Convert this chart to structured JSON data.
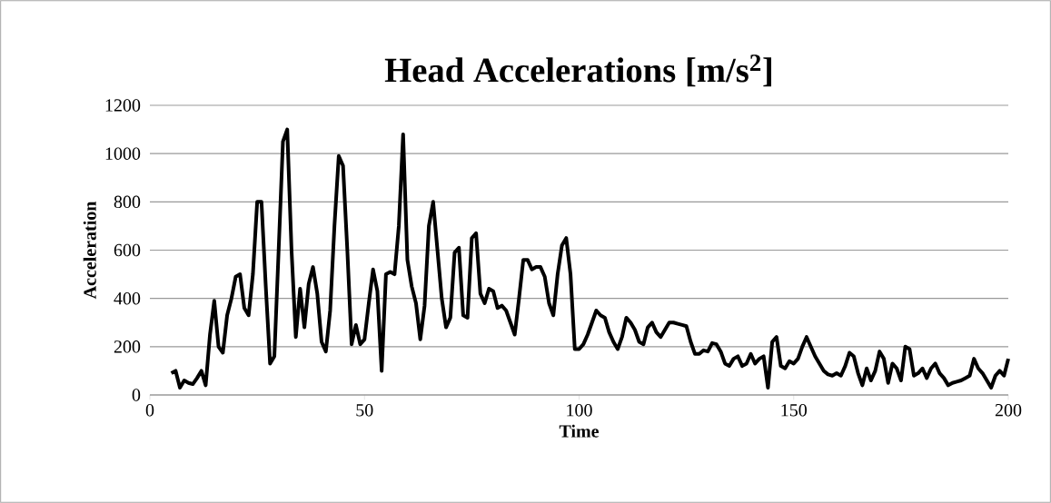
{
  "chart_data": {
    "type": "line",
    "title": "Head Accelerations [m/s$^{2}$]",
    "xlabel": "Time",
    "ylabel": "Acceleration",
    "x": [
      5,
      6,
      7,
      8,
      9,
      10,
      11,
      12,
      13,
      14,
      15,
      16,
      17,
      18,
      19,
      20,
      21,
      22,
      23,
      24,
      25,
      26,
      27,
      28,
      29,
      30,
      31,
      32,
      33,
      34,
      35,
      36,
      37,
      38,
      39,
      40,
      41,
      42,
      43,
      44,
      45,
      46,
      47,
      48,
      49,
      50,
      51,
      52,
      53,
      54,
      55,
      56,
      57,
      58,
      59,
      60,
      61,
      62,
      63,
      64,
      65,
      66,
      67,
      68,
      69,
      70,
      71,
      72,
      73,
      74,
      75,
      76,
      77,
      78,
      79,
      80,
      81,
      82,
      83,
      84,
      85,
      86,
      87,
      88,
      89,
      90,
      91,
      92,
      93,
      94,
      95,
      96,
      97,
      98,
      99,
      100,
      101,
      102,
      103,
      104,
      105,
      106,
      107,
      108,
      109,
      110,
      111,
      112,
      113,
      114,
      115,
      116,
      117,
      118,
      119,
      120,
      121,
      122,
      123,
      124,
      125,
      126,
      127,
      128,
      129,
      130,
      131,
      132,
      133,
      134,
      135,
      136,
      137,
      138,
      139,
      140,
      141,
      142,
      143,
      144,
      145,
      146,
      147,
      148,
      149,
      150,
      151,
      152,
      153,
      154,
      155,
      156,
      157,
      158,
      159,
      160,
      161,
      162,
      163,
      164,
      165,
      166,
      167,
      168,
      169,
      170,
      171,
      172,
      173,
      174,
      175,
      176,
      177,
      178,
      179,
      180,
      181,
      182,
      183,
      184,
      185,
      186,
      187,
      188,
      189,
      190,
      191,
      192,
      193,
      194,
      195,
      196,
      197,
      198,
      199,
      200
    ],
    "values": [
      90,
      100,
      30,
      60,
      50,
      45,
      70,
      100,
      40,
      250,
      390,
      200,
      175,
      330,
      400,
      490,
      500,
      360,
      330,
      500,
      800,
      800,
      450,
      130,
      160,
      600,
      1050,
      1100,
      600,
      240,
      440,
      280,
      460,
      530,
      420,
      220,
      180,
      350,
      700,
      990,
      950,
      600,
      210,
      290,
      210,
      230,
      380,
      520,
      430,
      100,
      500,
      510,
      500,
      700,
      1080,
      560,
      450,
      380,
      230,
      370,
      700,
      800,
      600,
      400,
      280,
      320,
      590,
      610,
      330,
      320,
      650,
      670,
      420,
      380,
      440,
      430,
      360,
      370,
      350,
      300,
      250,
      400,
      560,
      560,
      520,
      530,
      530,
      490,
      380,
      330,
      500,
      620,
      650,
      500,
      190,
      190,
      210,
      250,
      300,
      350,
      330,
      320,
      260,
      220,
      190,
      240,
      320,
      300,
      270,
      220,
      210,
      280,
      300,
      260,
      240,
      270,
      300,
      300,
      295,
      290,
      285,
      220,
      170,
      170,
      185,
      180,
      215,
      210,
      180,
      130,
      120,
      150,
      160,
      120,
      130,
      170,
      130,
      150,
      160,
      30,
      220,
      240,
      120,
      110,
      140,
      130,
      150,
      200,
      240,
      200,
      160,
      130,
      100,
      85,
      80,
      90,
      80,
      120,
      175,
      160,
      90,
      40,
      110,
      60,
      100,
      180,
      150,
      50,
      130,
      110,
      60,
      200,
      190,
      80,
      90,
      110,
      70,
      110,
      130,
      90,
      70,
      40,
      50,
      55,
      60,
      70,
      80,
      150,
      110,
      90,
      60,
      30,
      80,
      100,
      80,
      150
    ],
    "color": "#000000",
    "line_style": "solid",
    "marker": "none",
    "xlim": [
      0,
      200
    ],
    "xticks": [
      0,
      50,
      100,
      150,
      200
    ],
    "ylim": [
      0,
      1200
    ],
    "yticks": [
      0,
      200,
      400,
      600,
      800,
      1000,
      1200
    ],
    "grid": "y"
  }
}
